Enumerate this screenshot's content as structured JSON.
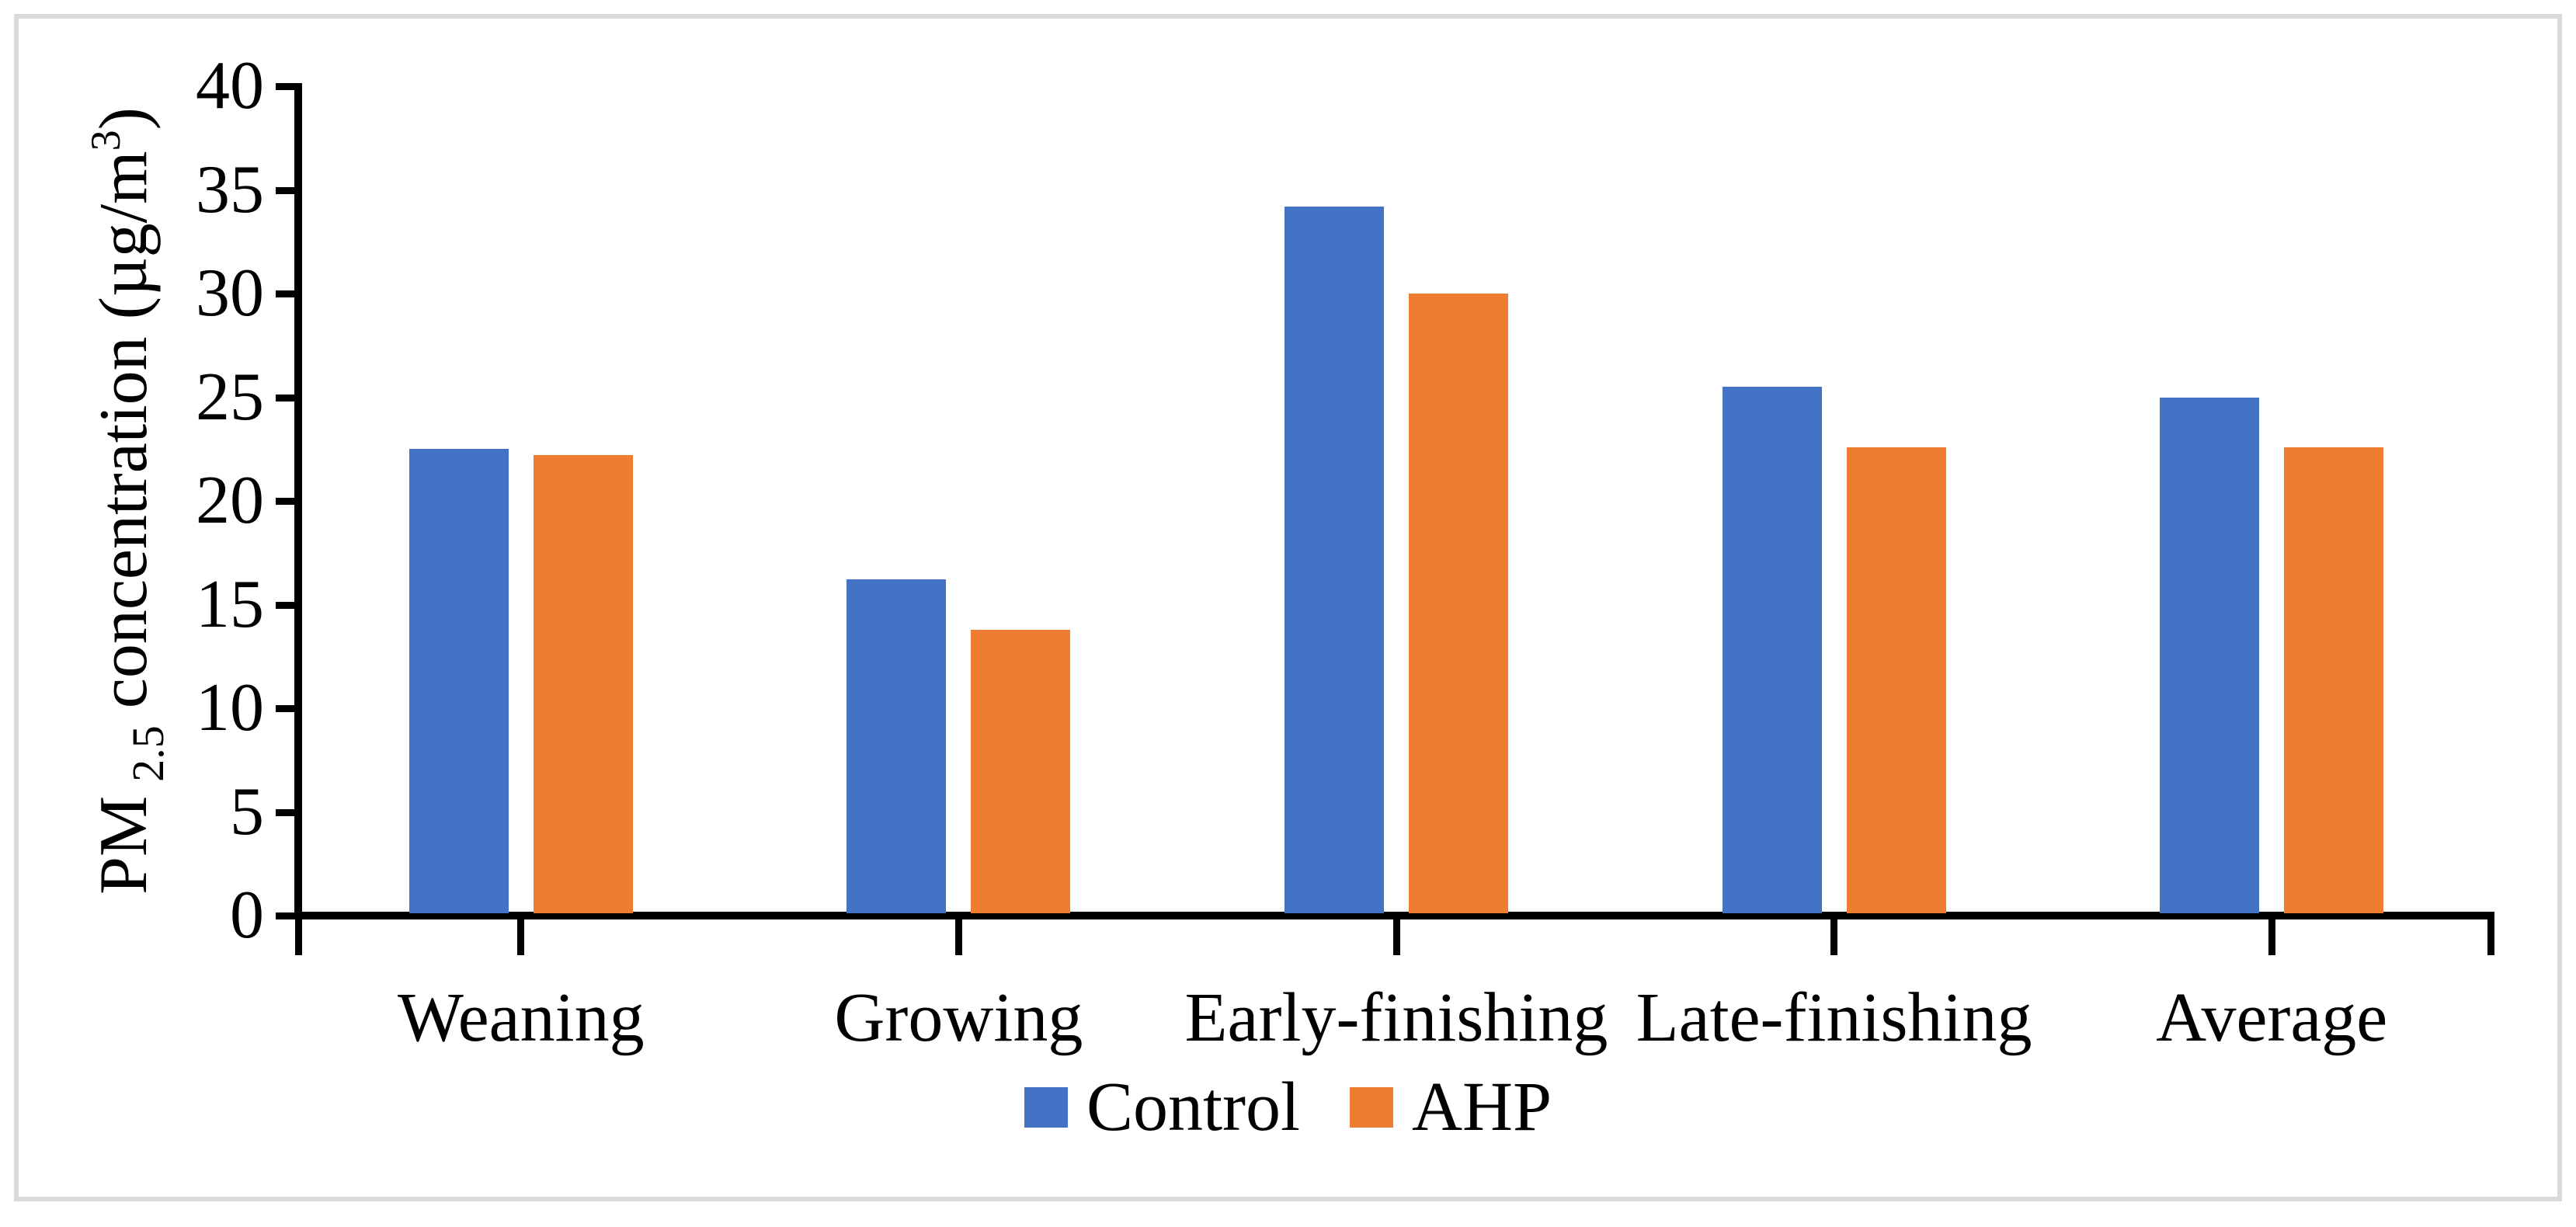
{
  "frame": {
    "border_color": "#d9d9d9"
  },
  "chart_data": {
    "type": "bar",
    "categories": [
      "Weaning",
      "Growing",
      "Early-finishing",
      "Late-finishing",
      "Average"
    ],
    "series": [
      {
        "name": "Control",
        "color": "#4472C4",
        "values": [
          22.5,
          16.2,
          34.2,
          25.5,
          25.0
        ]
      },
      {
        "name": "AHP",
        "color": "#ED7D31",
        "values": [
          22.2,
          13.8,
          30.0,
          22.6,
          22.6
        ]
      }
    ],
    "title": "",
    "xlabel": "",
    "ylabel": {
      "prefix": "PM",
      "sub": "2.5",
      "mid": " concentration (µg/m",
      "sup": "3",
      "suffix": ")"
    },
    "ylabel_text": "PM 2.5 concentration (µg/m³)",
    "ylim": [
      0,
      40
    ],
    "ytick_step": 5,
    "yticks": [
      0,
      5,
      10,
      15,
      20,
      25,
      30,
      35,
      40
    ],
    "grid": false,
    "axis_color": "#000000",
    "legend": {
      "position": "bottom-center",
      "entries": [
        "Control",
        "AHP"
      ]
    }
  }
}
